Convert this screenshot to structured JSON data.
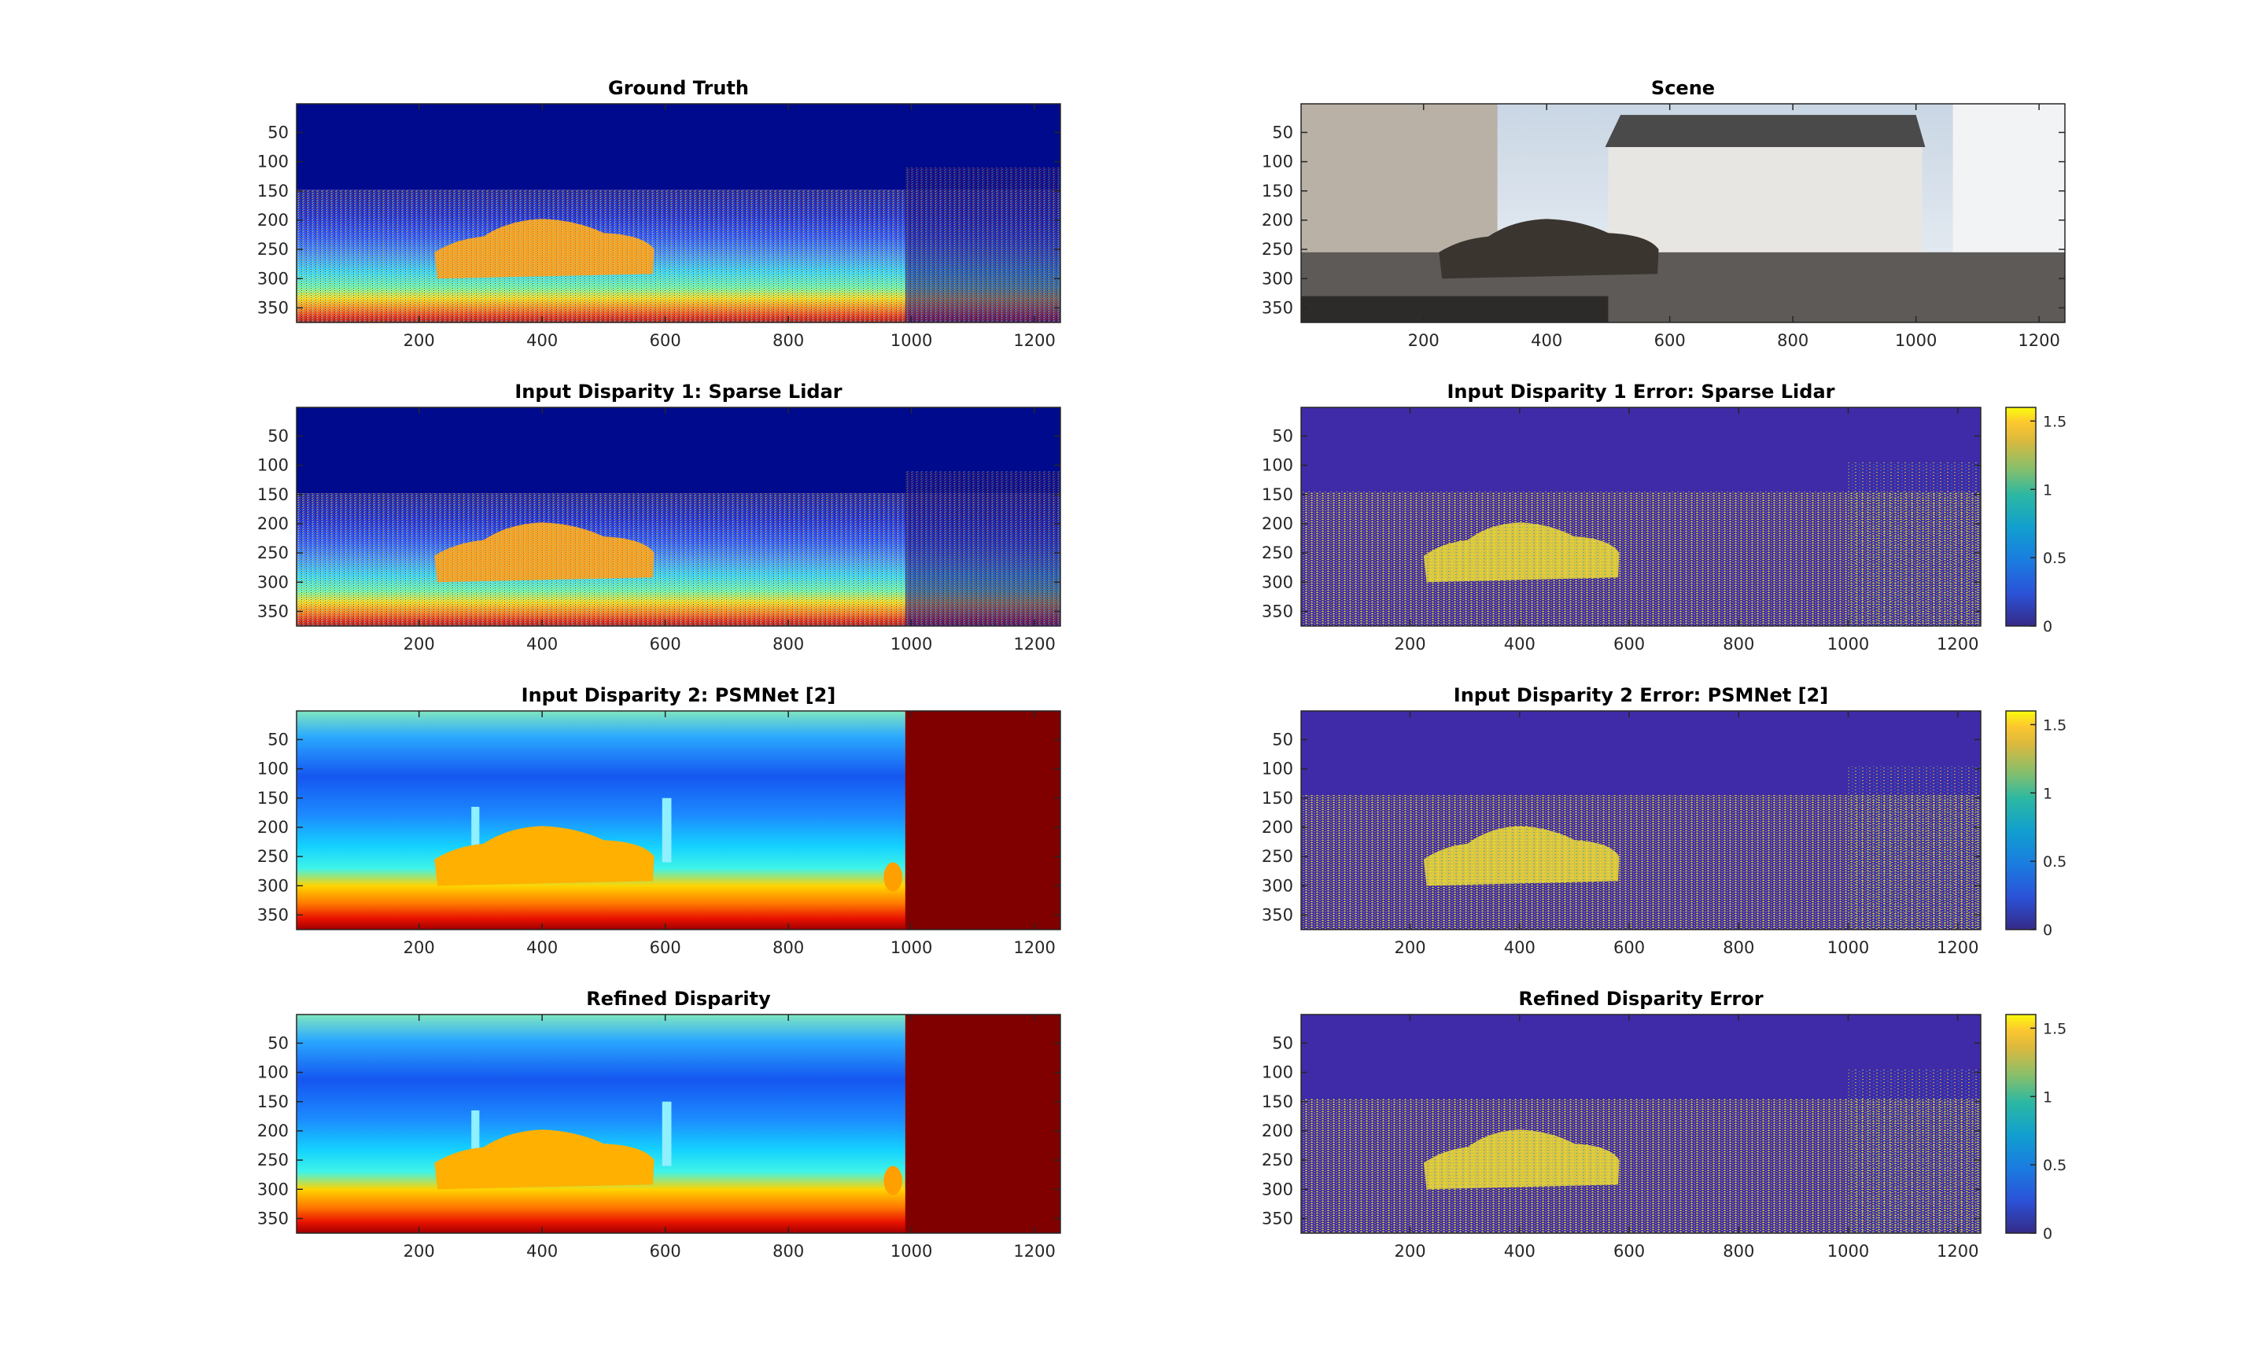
{
  "chart_data": [
    {
      "type": "heatmap",
      "title": "Ground Truth",
      "colormap": "jet",
      "content": "sparse",
      "xlim": [
        1,
        1242
      ],
      "ylim": [
        1,
        375
      ],
      "xticks": [
        200,
        400,
        600,
        800,
        1000,
        1200
      ],
      "yticks": [
        50,
        100,
        150,
        200,
        250,
        300,
        350
      ],
      "colorbar": null
    },
    {
      "type": "image",
      "title": "Scene",
      "content": "photo",
      "xlim": [
        1,
        1242
      ],
      "ylim": [
        1,
        375
      ],
      "xticks": [
        200,
        400,
        600,
        800,
        1000,
        1200
      ],
      "yticks": [
        50,
        100,
        150,
        200,
        250,
        300,
        350
      ],
      "colorbar": null
    },
    {
      "type": "heatmap",
      "title": "Input Disparity 1: Sparse Lidar",
      "colormap": "jet",
      "content": "sparse",
      "xlim": [
        1,
        1242
      ],
      "ylim": [
        1,
        375
      ],
      "xticks": [
        200,
        400,
        600,
        800,
        1000,
        1200
      ],
      "yticks": [
        50,
        100,
        150,
        200,
        250,
        300,
        350
      ],
      "colorbar": null
    },
    {
      "type": "heatmap",
      "title": "Input Disparity 1 Error: Sparse Lidar",
      "colormap": "parula",
      "content": "error",
      "xlim": [
        1,
        1242
      ],
      "ylim": [
        1,
        375
      ],
      "xticks": [
        200,
        400,
        600,
        800,
        1000,
        1200
      ],
      "yticks": [
        50,
        100,
        150,
        200,
        250,
        300,
        350
      ],
      "colorbar": {
        "range": [
          0,
          1.6
        ],
        "ticks": [
          0,
          0.5,
          1,
          1.5
        ],
        "tick_labels": [
          "0",
          "0.5",
          "1",
          "1.5"
        ]
      }
    },
    {
      "type": "heatmap",
      "title": "Input Disparity 2: PSMNet [2]",
      "colormap": "jet",
      "content": "dense",
      "xlim": [
        1,
        1242
      ],
      "ylim": [
        1,
        375
      ],
      "xticks": [
        200,
        400,
        600,
        800,
        1000,
        1200
      ],
      "yticks": [
        50,
        100,
        150,
        200,
        250,
        300,
        350
      ],
      "colorbar": null
    },
    {
      "type": "heatmap",
      "title": "Input Disparity 2 Error: PSMNet [2]",
      "colormap": "parula",
      "content": "error",
      "xlim": [
        1,
        1242
      ],
      "ylim": [
        1,
        375
      ],
      "xticks": [
        200,
        400,
        600,
        800,
        1000,
        1200
      ],
      "yticks": [
        50,
        100,
        150,
        200,
        250,
        300,
        350
      ],
      "colorbar": {
        "range": [
          0,
          1.6
        ],
        "ticks": [
          0,
          0.5,
          1,
          1.5
        ],
        "tick_labels": [
          "0",
          "0.5",
          "1",
          "1.5"
        ]
      }
    },
    {
      "type": "heatmap",
      "title": "Refined Disparity",
      "colormap": "jet",
      "content": "dense",
      "xlim": [
        1,
        1242
      ],
      "ylim": [
        1,
        375
      ],
      "xticks": [
        200,
        400,
        600,
        800,
        1000,
        1200
      ],
      "yticks": [
        50,
        100,
        150,
        200,
        250,
        300,
        350
      ],
      "colorbar": null
    },
    {
      "type": "heatmap",
      "title": "Refined Disparity Error",
      "colormap": "parula",
      "content": "error",
      "xlim": [
        1,
        1242
      ],
      "ylim": [
        1,
        375
      ],
      "xticks": [
        200,
        400,
        600,
        800,
        1000,
        1200
      ],
      "yticks": [
        50,
        100,
        150,
        200,
        250,
        300,
        350
      ],
      "colorbar": {
        "range": [
          0,
          1.6
        ],
        "ticks": [
          0,
          0.5,
          1,
          1.5
        ],
        "tick_labels": [
          "0",
          "0.5",
          "1",
          "1.5"
        ]
      }
    }
  ]
}
